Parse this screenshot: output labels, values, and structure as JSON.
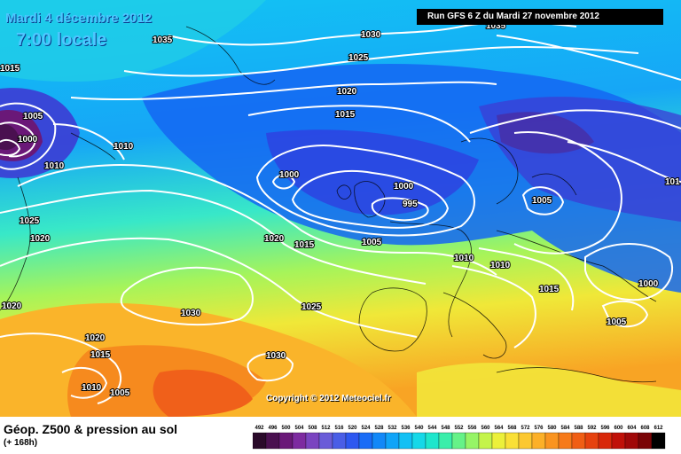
{
  "header": {
    "date": "Mardi 4 décembre 2012",
    "time": "7:00 locale",
    "run": "Run GFS 6 Z du Mardi 27 novembre 2012"
  },
  "copyright": "Copyright © 2012 Meteociel.fr",
  "footer": {
    "title": "Géop. Z500 & pression au sol",
    "subtitle": "(+ 168h)"
  },
  "isobar_labels": [
    "1035",
    "1030",
    "1025",
    "1020",
    "1015",
    "1010",
    "1005",
    "1000",
    "995",
    "1000",
    "1005",
    "1010",
    "1010",
    "1015",
    "1020",
    "1025",
    "1030",
    "1015",
    "1020",
    "1025",
    "1020",
    "1030",
    "1020",
    "1015",
    "1010",
    "1005",
    "1030",
    "1010",
    "1005",
    "1000",
    "1005",
    "1015",
    "101",
    "1015",
    "1010",
    "1000",
    "1005",
    "1035"
  ],
  "legend": {
    "values": [
      "492",
      "496",
      "500",
      "504",
      "508",
      "512",
      "516",
      "520",
      "524",
      "528",
      "532",
      "536",
      "540",
      "544",
      "548",
      "552",
      "556",
      "560",
      "564",
      "568",
      "572",
      "576",
      "580",
      "584",
      "588",
      "592",
      "596",
      "600",
      "604",
      "608",
      "612"
    ],
    "colors": [
      "#2a0a2a",
      "#4a1050",
      "#6a1878",
      "#7d2aa0",
      "#7a44c0",
      "#6a5cd8",
      "#4a5ee6",
      "#2e58f0",
      "#1a6cf6",
      "#1288f8",
      "#10a4f8",
      "#12c0f4",
      "#16d8e8",
      "#1ee6cc",
      "#3aeeaa",
      "#66f288",
      "#96f466",
      "#c4f44a",
      "#ecf03a",
      "#fae036",
      "#fcc830",
      "#fcb028",
      "#fa9420",
      "#f67a1a",
      "#f05e14",
      "#e6420e",
      "#d8280a",
      "#c01008",
      "#a00808",
      "#7a0406",
      "#000000"
    ]
  }
}
